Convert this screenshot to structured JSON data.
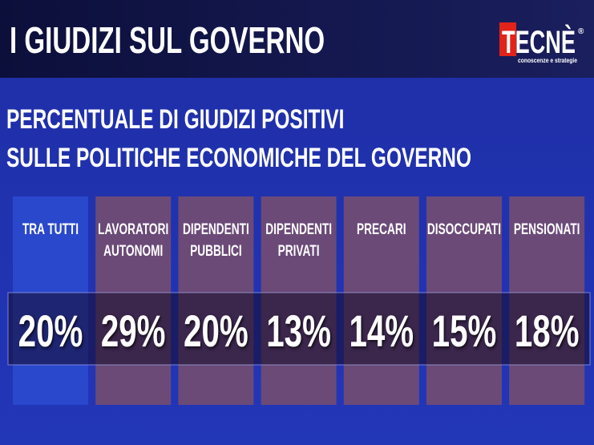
{
  "header": {
    "title": "I GIUDIZI SUL GOVERNO",
    "logo": {
      "name": "TECNÈ",
      "mark": "®",
      "tagline": "conoscenze e strategie"
    }
  },
  "subtitle": [
    "PERCENTUALE DI GIUDIZI POSITIVI",
    "SULLE POLITICHE ECONOMICHE DEL GOVERNO"
  ],
  "columns": [
    {
      "label": [
        "TRA TUTTI"
      ],
      "value": "20%"
    },
    {
      "label": [
        "LAVORATORI",
        "AUTONOMI"
      ],
      "value": "29%"
    },
    {
      "label": [
        "DIPENDENTI",
        "PUBBLICI"
      ],
      "value": "20%"
    },
    {
      "label": [
        "DIPENDENTI",
        "PRIVATI"
      ],
      "value": "13%"
    },
    {
      "label": [
        "PRECARI"
      ],
      "value": "14%"
    },
    {
      "label": [
        "DISOCCUPATI"
      ],
      "value": "15%"
    },
    {
      "label": [
        "PENSIONATI"
      ],
      "value": "18%"
    }
  ]
}
